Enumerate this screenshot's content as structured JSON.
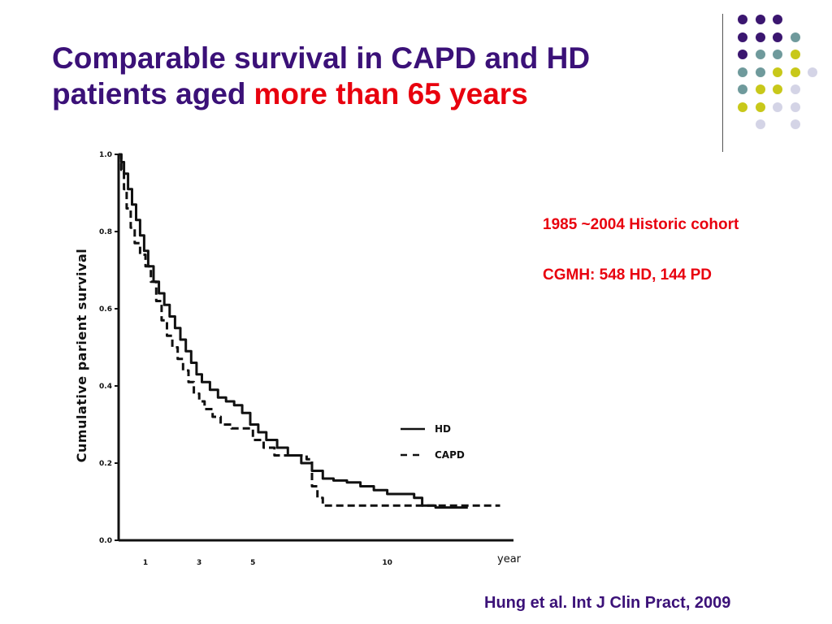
{
  "slide": {
    "title_main": "Comparable survival in CAPD and HD patients aged",
    "title_accent": "more than 65 years",
    "info_line1": "1985 ~2004 Historic cohort",
    "info_line2": "CGMH: 548 HD, 144 PD",
    "citation": "Hung et al. Int J Clin Pract, 2009"
  },
  "colors": {
    "title": "#3b1178",
    "accent": "#e8000e",
    "dot_purple": "#3b1670",
    "dot_teal": "#6f9a9c",
    "dot_yellow": "#c8c81a",
    "dot_lavender": "#d4d4e6"
  },
  "dot_grid": [
    [
      "dot_purple",
      "dot_purple",
      "dot_purple",
      "",
      ""
    ],
    [
      "dot_purple",
      "dot_purple",
      "dot_purple",
      "dot_teal",
      ""
    ],
    [
      "dot_purple",
      "dot_teal",
      "dot_teal",
      "dot_yellow",
      ""
    ],
    [
      "dot_teal",
      "dot_teal",
      "dot_yellow",
      "dot_yellow",
      "dot_lavender"
    ],
    [
      "dot_teal",
      "dot_yellow",
      "dot_yellow",
      "dot_lavender",
      ""
    ],
    [
      "dot_yellow",
      "dot_yellow",
      "dot_lavender",
      "dot_lavender",
      ""
    ],
    [
      "",
      "dot_lavender",
      "",
      "dot_lavender",
      ""
    ]
  ],
  "chart_data": {
    "type": "line",
    "title": "",
    "xlabel": "year",
    "ylabel": "Cumulative parient survival",
    "xlim": [
      0,
      14.7
    ],
    "ylim": [
      0,
      1.0
    ],
    "x_ticks": [
      1,
      3,
      5,
      10
    ],
    "x_tick_labels": [
      "1",
      "3",
      "5",
      "10"
    ],
    "y_ticks": [
      0,
      0.2,
      0.4,
      0.6,
      0.8,
      1.0
    ],
    "y_tick_labels": [
      "0.0",
      "0.2",
      "0.4",
      "0.6",
      "0.8",
      "1.0"
    ],
    "grid": false,
    "legend_position": "right",
    "series": [
      {
        "name": "HD",
        "style": "solid",
        "points": [
          [
            0,
            1.0
          ],
          [
            0.1,
            0.98
          ],
          [
            0.2,
            0.95
          ],
          [
            0.35,
            0.91
          ],
          [
            0.5,
            0.87
          ],
          [
            0.65,
            0.83
          ],
          [
            0.8,
            0.79
          ],
          [
            0.95,
            0.75
          ],
          [
            1.1,
            0.71
          ],
          [
            1.3,
            0.67
          ],
          [
            1.5,
            0.64
          ],
          [
            1.7,
            0.61
          ],
          [
            1.9,
            0.58
          ],
          [
            2.1,
            0.55
          ],
          [
            2.3,
            0.52
          ],
          [
            2.5,
            0.49
          ],
          [
            2.7,
            0.46
          ],
          [
            2.9,
            0.43
          ],
          [
            3.1,
            0.41
          ],
          [
            3.4,
            0.39
          ],
          [
            3.7,
            0.37
          ],
          [
            4.0,
            0.36
          ],
          [
            4.3,
            0.35
          ],
          [
            4.6,
            0.33
          ],
          [
            4.9,
            0.3
          ],
          [
            5.2,
            0.28
          ],
          [
            5.5,
            0.26
          ],
          [
            5.9,
            0.24
          ],
          [
            6.3,
            0.22
          ],
          [
            6.8,
            0.2
          ],
          [
            7.2,
            0.18
          ],
          [
            7.6,
            0.16
          ],
          [
            8.0,
            0.155
          ],
          [
            8.5,
            0.15
          ],
          [
            9.0,
            0.14
          ],
          [
            9.5,
            0.13
          ],
          [
            10.0,
            0.12
          ],
          [
            10.5,
            0.12
          ],
          [
            11.0,
            0.11
          ],
          [
            11.3,
            0.09
          ],
          [
            11.8,
            0.085
          ],
          [
            12.5,
            0.085
          ],
          [
            13.0,
            0.085
          ]
        ]
      },
      {
        "name": "CAPD",
        "style": "dashed",
        "points": [
          [
            0,
            1.0
          ],
          [
            0.1,
            0.96
          ],
          [
            0.2,
            0.91
          ],
          [
            0.3,
            0.86
          ],
          [
            0.45,
            0.81
          ],
          [
            0.6,
            0.77
          ],
          [
            0.8,
            0.74
          ],
          [
            1.0,
            0.71
          ],
          [
            1.2,
            0.67
          ],
          [
            1.4,
            0.62
          ],
          [
            1.6,
            0.57
          ],
          [
            1.8,
            0.53
          ],
          [
            2.0,
            0.5
          ],
          [
            2.2,
            0.47
          ],
          [
            2.4,
            0.44
          ],
          [
            2.6,
            0.41
          ],
          [
            2.8,
            0.38
          ],
          [
            3.0,
            0.36
          ],
          [
            3.2,
            0.34
          ],
          [
            3.5,
            0.32
          ],
          [
            3.8,
            0.3
          ],
          [
            4.2,
            0.29
          ],
          [
            4.8,
            0.29
          ],
          [
            5.0,
            0.26
          ],
          [
            5.4,
            0.24
          ],
          [
            5.8,
            0.22
          ],
          [
            6.2,
            0.22
          ],
          [
            6.7,
            0.22
          ],
          [
            7.0,
            0.21
          ],
          [
            7.2,
            0.14
          ],
          [
            7.4,
            0.11
          ],
          [
            7.6,
            0.09
          ],
          [
            8.5,
            0.09
          ],
          [
            9.5,
            0.09
          ],
          [
            10.5,
            0.09
          ],
          [
            11.5,
            0.09
          ],
          [
            12.5,
            0.09
          ],
          [
            13.5,
            0.09
          ],
          [
            14.2,
            0.09
          ]
        ]
      }
    ]
  }
}
